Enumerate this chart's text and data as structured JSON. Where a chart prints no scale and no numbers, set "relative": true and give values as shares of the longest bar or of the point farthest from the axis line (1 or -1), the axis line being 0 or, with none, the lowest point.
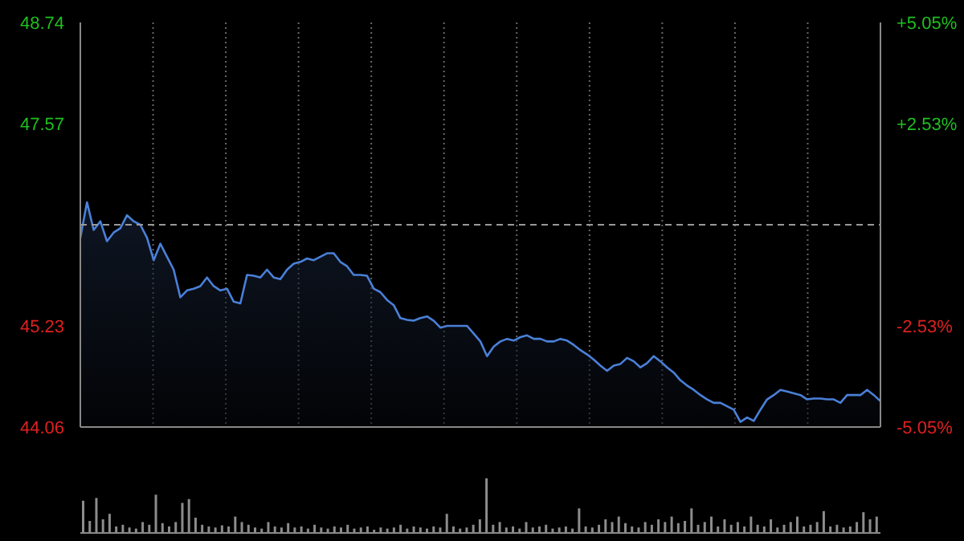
{
  "chart_data": [
    {
      "type": "area",
      "categories": [
        null,
        null,
        null,
        null,
        null,
        null,
        null,
        null,
        null,
        null,
        null,
        null,
        null,
        null,
        null,
        null,
        null,
        null,
        null,
        null,
        null,
        null,
        null,
        null,
        null,
        null,
        null,
        null,
        null,
        null,
        null,
        null,
        null,
        null,
        null,
        null,
        null,
        null,
        null,
        null,
        null,
        null,
        null,
        null,
        null,
        null,
        null,
        null,
        null,
        null,
        null,
        null,
        null,
        null,
        null,
        null,
        null,
        null,
        null,
        null,
        null,
        null,
        null,
        null,
        null,
        null,
        null,
        null,
        null,
        null,
        null,
        null,
        null,
        null,
        null,
        null,
        null,
        null,
        null,
        null,
        null,
        null,
        null,
        null,
        null,
        null,
        null,
        null,
        null,
        null,
        null,
        null,
        null,
        null,
        null,
        null,
        null,
        null,
        null,
        null,
        null,
        null,
        null,
        null,
        null,
        null,
        null,
        null,
        null,
        null,
        null,
        null,
        null,
        null,
        null,
        null,
        null,
        null,
        null,
        null,
        null
      ],
      "series": [
        {
          "color": "#4a80d8",
          "values": [
            46.25,
            46.66,
            46.34,
            46.44,
            46.21,
            46.31,
            46.36,
            46.51,
            46.44,
            46.4,
            46.25,
            45.99,
            46.18,
            46.03,
            45.88,
            45.56,
            45.64,
            45.66,
            45.69,
            45.79,
            45.69,
            45.64,
            45.66,
            45.51,
            45.49,
            45.82,
            45.81,
            45.79,
            45.88,
            45.79,
            45.77,
            45.88,
            45.95,
            45.97,
            46.01,
            45.99,
            46.03,
            46.07,
            46.07,
            45.97,
            45.92,
            45.82,
            45.82,
            45.81,
            45.66,
            45.62,
            45.53,
            45.47,
            45.32,
            45.3,
            45.29,
            45.32,
            45.34,
            45.29,
            45.21,
            45.23,
            45.23,
            45.23,
            45.23,
            45.14,
            45.05,
            44.88,
            44.99,
            45.05,
            45.08,
            45.06,
            45.1,
            45.12,
            45.08,
            45.08,
            45.05,
            45.05,
            45.08,
            45.06,
            45.01,
            44.95,
            44.9,
            44.84,
            44.77,
            44.71,
            44.77,
            44.79,
            44.86,
            44.82,
            44.75,
            44.8,
            44.88,
            44.82,
            44.75,
            44.69,
            44.6,
            44.54,
            44.49,
            44.43,
            44.38,
            44.34,
            44.34,
            44.3,
            44.26,
            44.12,
            44.17,
            44.13,
            44.26,
            44.38,
            44.43,
            44.49,
            44.47,
            44.45,
            44.43,
            44.38,
            44.39,
            44.39,
            44.38,
            44.38,
            44.34,
            44.43,
            44.43,
            44.43,
            44.49,
            44.43,
            44.36
          ]
        }
      ],
      "ylim": [
        44.06,
        48.74
      ],
      "yticks": [
        44.06,
        45.23,
        47.57,
        48.74
      ],
      "y2lim": [
        -5.05,
        5.05
      ],
      "y2ticks": [
        {
          "value": -5.05,
          "label": "-5.05%"
        },
        {
          "value": -2.53,
          "label": "-2.53%"
        },
        {
          "value": 2.53,
          "label": "+2.53%"
        },
        {
          "value": 5.05,
          "label": "+5.05%"
        }
      ],
      "ref_lines": [
        {
          "axis": "y",
          "value": 46.4,
          "line_style": "dashed"
        }
      ],
      "grid": true,
      "marker": "none"
    },
    {
      "type": "bar",
      "relative": true,
      "color": "#8c8c8c",
      "categories": [
        null,
        null,
        null,
        null,
        null,
        null,
        null,
        null,
        null,
        null,
        null,
        null,
        null,
        null,
        null,
        null,
        null,
        null,
        null,
        null,
        null,
        null,
        null,
        null,
        null,
        null,
        null,
        null,
        null,
        null,
        null,
        null,
        null,
        null,
        null,
        null,
        null,
        null,
        null,
        null,
        null,
        null,
        null,
        null,
        null,
        null,
        null,
        null,
        null,
        null,
        null,
        null,
        null,
        null,
        null,
        null,
        null,
        null,
        null,
        null,
        null,
        null,
        null,
        null,
        null,
        null,
        null,
        null,
        null,
        null,
        null,
        null,
        null,
        null,
        null,
        null,
        null,
        null,
        null,
        null,
        null,
        null,
        null,
        null,
        null,
        null,
        null,
        null,
        null,
        null,
        null,
        null,
        null,
        null,
        null,
        null,
        null,
        null,
        null,
        null,
        null,
        null,
        null,
        null,
        null,
        null,
        null,
        null,
        null,
        null,
        null,
        null,
        null,
        null,
        null,
        null,
        null,
        null,
        null,
        null,
        null
      ],
      "values": [
        0.59,
        0.22,
        0.64,
        0.25,
        0.35,
        0.12,
        0.15,
        0.1,
        0.08,
        0.2,
        0.15,
        0.7,
        0.18,
        0.12,
        0.2,
        0.55,
        0.62,
        0.28,
        0.15,
        0.12,
        0.1,
        0.14,
        0.12,
        0.3,
        0.2,
        0.15,
        0.1,
        0.08,
        0.2,
        0.12,
        0.1,
        0.18,
        0.1,
        0.12,
        0.08,
        0.15,
        0.1,
        0.08,
        0.12,
        0.1,
        0.15,
        0.08,
        0.1,
        0.12,
        0.06,
        0.1,
        0.08,
        0.1,
        0.15,
        0.08,
        0.12,
        0.1,
        0.08,
        0.12,
        0.1,
        0.35,
        0.12,
        0.08,
        0.1,
        0.15,
        0.25,
        1.0,
        0.15,
        0.2,
        0.1,
        0.12,
        0.08,
        0.2,
        0.1,
        0.12,
        0.15,
        0.08,
        0.1,
        0.12,
        0.08,
        0.45,
        0.12,
        0.1,
        0.15,
        0.25,
        0.2,
        0.3,
        0.18,
        0.12,
        0.1,
        0.2,
        0.15,
        0.25,
        0.2,
        0.3,
        0.18,
        0.22,
        0.45,
        0.15,
        0.2,
        0.3,
        0.12,
        0.25,
        0.15,
        0.2,
        0.12,
        0.3,
        0.15,
        0.12,
        0.25,
        0.1,
        0.15,
        0.2,
        0.3,
        0.12,
        0.15,
        0.2,
        0.4,
        0.12,
        0.15,
        0.1,
        0.12,
        0.2,
        0.38,
        0.25,
        0.3
      ]
    }
  ]
}
